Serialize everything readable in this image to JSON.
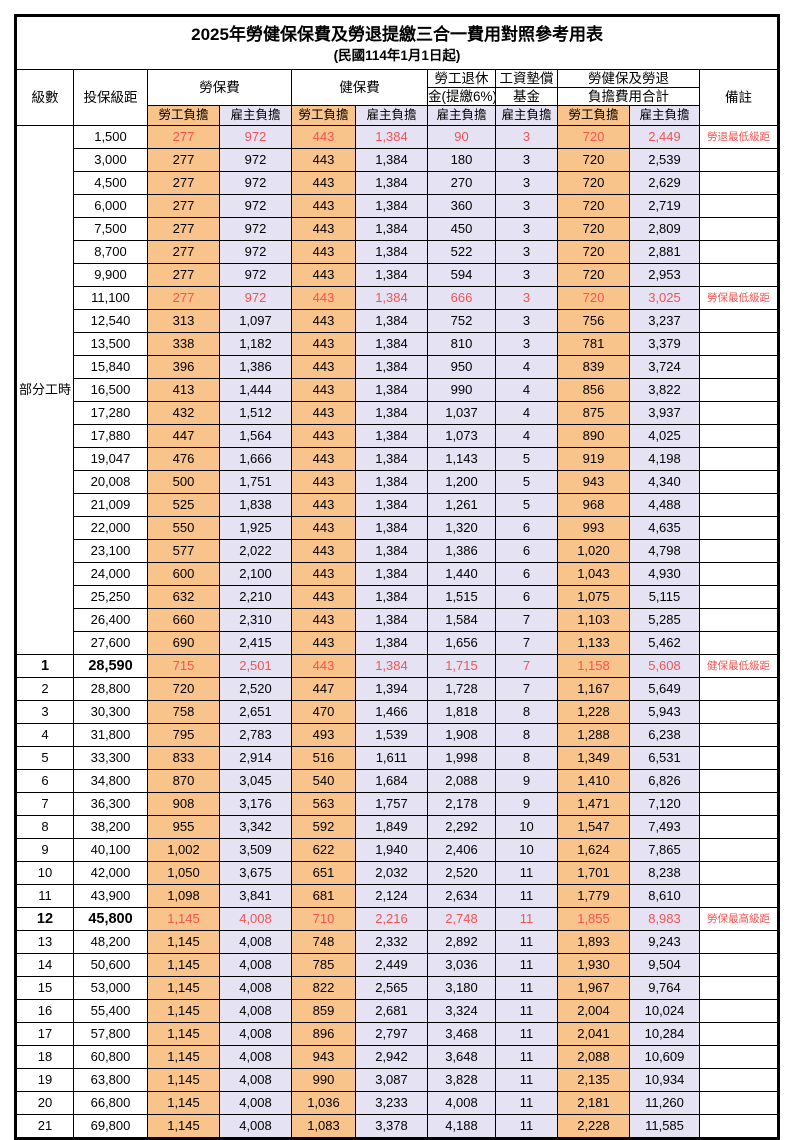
{
  "title": "2025年勞健保保費及勞退提繳三合一費用對照參考用表",
  "subtitle": "(民國114年1月1日起)",
  "colors": {
    "employee_col_bg": "#f9c48b",
    "employer_col_bg": "#e4e2f3",
    "highlight_text": "#f15454",
    "border": "#000000"
  },
  "header": {
    "level": "級數",
    "bracket": "投保級距",
    "labor_ins": "勞保費",
    "health_ins": "健保費",
    "pension_line1": "勞工退休",
    "pension_line2": "金(提繳6%)",
    "wage_fund_line1": "工資墊償",
    "wage_fund_line2": "基金",
    "total_line1": "勞健保及勞退",
    "total_line2": "負擔費用合計",
    "remark": "備註",
    "employee": "勞工負擔",
    "employer": "雇主負擔"
  },
  "part_time": {
    "label": "部分工時",
    "span": 23
  },
  "rows": [
    {
      "bracket": "1,500",
      "v": [
        "277",
        "972",
        "443",
        "1,384",
        "90",
        "3",
        "720",
        "2,449"
      ],
      "remark": "勞退最低級距",
      "red": true
    },
    {
      "bracket": "3,000",
      "v": [
        "277",
        "972",
        "443",
        "1,384",
        "180",
        "3",
        "720",
        "2,539"
      ],
      "remark": ""
    },
    {
      "bracket": "4,500",
      "v": [
        "277",
        "972",
        "443",
        "1,384",
        "270",
        "3",
        "720",
        "2,629"
      ],
      "remark": ""
    },
    {
      "bracket": "6,000",
      "v": [
        "277",
        "972",
        "443",
        "1,384",
        "360",
        "3",
        "720",
        "2,719"
      ],
      "remark": ""
    },
    {
      "bracket": "7,500",
      "v": [
        "277",
        "972",
        "443",
        "1,384",
        "450",
        "3",
        "720",
        "2,809"
      ],
      "remark": ""
    },
    {
      "bracket": "8,700",
      "v": [
        "277",
        "972",
        "443",
        "1,384",
        "522",
        "3",
        "720",
        "2,881"
      ],
      "remark": ""
    },
    {
      "bracket": "9,900",
      "v": [
        "277",
        "972",
        "443",
        "1,384",
        "594",
        "3",
        "720",
        "2,953"
      ],
      "remark": ""
    },
    {
      "bracket": "11,100",
      "v": [
        "277",
        "972",
        "443",
        "1,384",
        "666",
        "3",
        "720",
        "3,025"
      ],
      "remark": "勞保最低級距",
      "red": true
    },
    {
      "bracket": "12,540",
      "v": [
        "313",
        "1,097",
        "443",
        "1,384",
        "752",
        "3",
        "756",
        "3,237"
      ],
      "remark": ""
    },
    {
      "bracket": "13,500",
      "v": [
        "338",
        "1,182",
        "443",
        "1,384",
        "810",
        "3",
        "781",
        "3,379"
      ],
      "remark": ""
    },
    {
      "bracket": "15,840",
      "v": [
        "396",
        "1,386",
        "443",
        "1,384",
        "950",
        "4",
        "839",
        "3,724"
      ],
      "remark": ""
    },
    {
      "bracket": "16,500",
      "v": [
        "413",
        "1,444",
        "443",
        "1,384",
        "990",
        "4",
        "856",
        "3,822"
      ],
      "remark": ""
    },
    {
      "bracket": "17,280",
      "v": [
        "432",
        "1,512",
        "443",
        "1,384",
        "1,037",
        "4",
        "875",
        "3,937"
      ],
      "remark": ""
    },
    {
      "bracket": "17,880",
      "v": [
        "447",
        "1,564",
        "443",
        "1,384",
        "1,073",
        "4",
        "890",
        "4,025"
      ],
      "remark": ""
    },
    {
      "bracket": "19,047",
      "v": [
        "476",
        "1,666",
        "443",
        "1,384",
        "1,143",
        "5",
        "919",
        "4,198"
      ],
      "remark": ""
    },
    {
      "bracket": "20,008",
      "v": [
        "500",
        "1,751",
        "443",
        "1,384",
        "1,200",
        "5",
        "943",
        "4,340"
      ],
      "remark": ""
    },
    {
      "bracket": "21,009",
      "v": [
        "525",
        "1,838",
        "443",
        "1,384",
        "1,261",
        "5",
        "968",
        "4,488"
      ],
      "remark": ""
    },
    {
      "bracket": "22,000",
      "v": [
        "550",
        "1,925",
        "443",
        "1,384",
        "1,320",
        "6",
        "993",
        "4,635"
      ],
      "remark": ""
    },
    {
      "bracket": "23,100",
      "v": [
        "577",
        "2,022",
        "443",
        "1,384",
        "1,386",
        "6",
        "1,020",
        "4,798"
      ],
      "remark": ""
    },
    {
      "bracket": "24,000",
      "v": [
        "600",
        "2,100",
        "443",
        "1,384",
        "1,440",
        "6",
        "1,043",
        "4,930"
      ],
      "remark": ""
    },
    {
      "bracket": "25,250",
      "v": [
        "632",
        "2,210",
        "443",
        "1,384",
        "1,515",
        "6",
        "1,075",
        "5,115"
      ],
      "remark": ""
    },
    {
      "bracket": "26,400",
      "v": [
        "660",
        "2,310",
        "443",
        "1,384",
        "1,584",
        "7",
        "1,103",
        "5,285"
      ],
      "remark": ""
    },
    {
      "bracket": "27,600",
      "v": [
        "690",
        "2,415",
        "443",
        "1,384",
        "1,656",
        "7",
        "1,133",
        "5,462"
      ],
      "remark": ""
    },
    {
      "level": "1",
      "bracket": "28,590",
      "v": [
        "715",
        "2,501",
        "443",
        "1,384",
        "1,715",
        "7",
        "1,158",
        "5,608"
      ],
      "remark": "健保最低級距",
      "red": true,
      "em": true
    },
    {
      "level": "2",
      "bracket": "28,800",
      "v": [
        "720",
        "2,520",
        "447",
        "1,394",
        "1,728",
        "7",
        "1,167",
        "5,649"
      ],
      "remark": ""
    },
    {
      "level": "3",
      "bracket": "30,300",
      "v": [
        "758",
        "2,651",
        "470",
        "1,466",
        "1,818",
        "8",
        "1,228",
        "5,943"
      ],
      "remark": ""
    },
    {
      "level": "4",
      "bracket": "31,800",
      "v": [
        "795",
        "2,783",
        "493",
        "1,539",
        "1,908",
        "8",
        "1,288",
        "6,238"
      ],
      "remark": ""
    },
    {
      "level": "5",
      "bracket": "33,300",
      "v": [
        "833",
        "2,914",
        "516",
        "1,611",
        "1,998",
        "8",
        "1,349",
        "6,531"
      ],
      "remark": ""
    },
    {
      "level": "6",
      "bracket": "34,800",
      "v": [
        "870",
        "3,045",
        "540",
        "1,684",
        "2,088",
        "9",
        "1,410",
        "6,826"
      ],
      "remark": ""
    },
    {
      "level": "7",
      "bracket": "36,300",
      "v": [
        "908",
        "3,176",
        "563",
        "1,757",
        "2,178",
        "9",
        "1,471",
        "7,120"
      ],
      "remark": ""
    },
    {
      "level": "8",
      "bracket": "38,200",
      "v": [
        "955",
        "3,342",
        "592",
        "1,849",
        "2,292",
        "10",
        "1,547",
        "7,493"
      ],
      "remark": ""
    },
    {
      "level": "9",
      "bracket": "40,100",
      "v": [
        "1,002",
        "3,509",
        "622",
        "1,940",
        "2,406",
        "10",
        "1,624",
        "7,865"
      ],
      "remark": ""
    },
    {
      "level": "10",
      "bracket": "42,000",
      "v": [
        "1,050",
        "3,675",
        "651",
        "2,032",
        "2,520",
        "11",
        "1,701",
        "8,238"
      ],
      "remark": ""
    },
    {
      "level": "11",
      "bracket": "43,900",
      "v": [
        "1,098",
        "3,841",
        "681",
        "2,124",
        "2,634",
        "11",
        "1,779",
        "8,610"
      ],
      "remark": ""
    },
    {
      "level": "12",
      "bracket": "45,800",
      "v": [
        "1,145",
        "4,008",
        "710",
        "2,216",
        "2,748",
        "11",
        "1,855",
        "8,983"
      ],
      "remark": "勞保最高級距",
      "red": true,
      "em": true
    },
    {
      "level": "13",
      "bracket": "48,200",
      "v": [
        "1,145",
        "4,008",
        "748",
        "2,332",
        "2,892",
        "11",
        "1,893",
        "9,243"
      ],
      "remark": ""
    },
    {
      "level": "14",
      "bracket": "50,600",
      "v": [
        "1,145",
        "4,008",
        "785",
        "2,449",
        "3,036",
        "11",
        "1,930",
        "9,504"
      ],
      "remark": ""
    },
    {
      "level": "15",
      "bracket": "53,000",
      "v": [
        "1,145",
        "4,008",
        "822",
        "2,565",
        "3,180",
        "11",
        "1,967",
        "9,764"
      ],
      "remark": ""
    },
    {
      "level": "16",
      "bracket": "55,400",
      "v": [
        "1,145",
        "4,008",
        "859",
        "2,681",
        "3,324",
        "11",
        "2,004",
        "10,024"
      ],
      "remark": ""
    },
    {
      "level": "17",
      "bracket": "57,800",
      "v": [
        "1,145",
        "4,008",
        "896",
        "2,797",
        "3,468",
        "11",
        "2,041",
        "10,284"
      ],
      "remark": ""
    },
    {
      "level": "18",
      "bracket": "60,800",
      "v": [
        "1,145",
        "4,008",
        "943",
        "2,942",
        "3,648",
        "11",
        "2,088",
        "10,609"
      ],
      "remark": ""
    },
    {
      "level": "19",
      "bracket": "63,800",
      "v": [
        "1,145",
        "4,008",
        "990",
        "3,087",
        "3,828",
        "11",
        "2,135",
        "10,934"
      ],
      "remark": ""
    },
    {
      "level": "20",
      "bracket": "66,800",
      "v": [
        "1,145",
        "4,008",
        "1,036",
        "3,233",
        "4,008",
        "11",
        "2,181",
        "11,260"
      ],
      "remark": ""
    },
    {
      "level": "21",
      "bracket": "69,800",
      "v": [
        "1,145",
        "4,008",
        "1,083",
        "3,378",
        "4,188",
        "11",
        "2,228",
        "11,585"
      ],
      "remark": ""
    }
  ]
}
